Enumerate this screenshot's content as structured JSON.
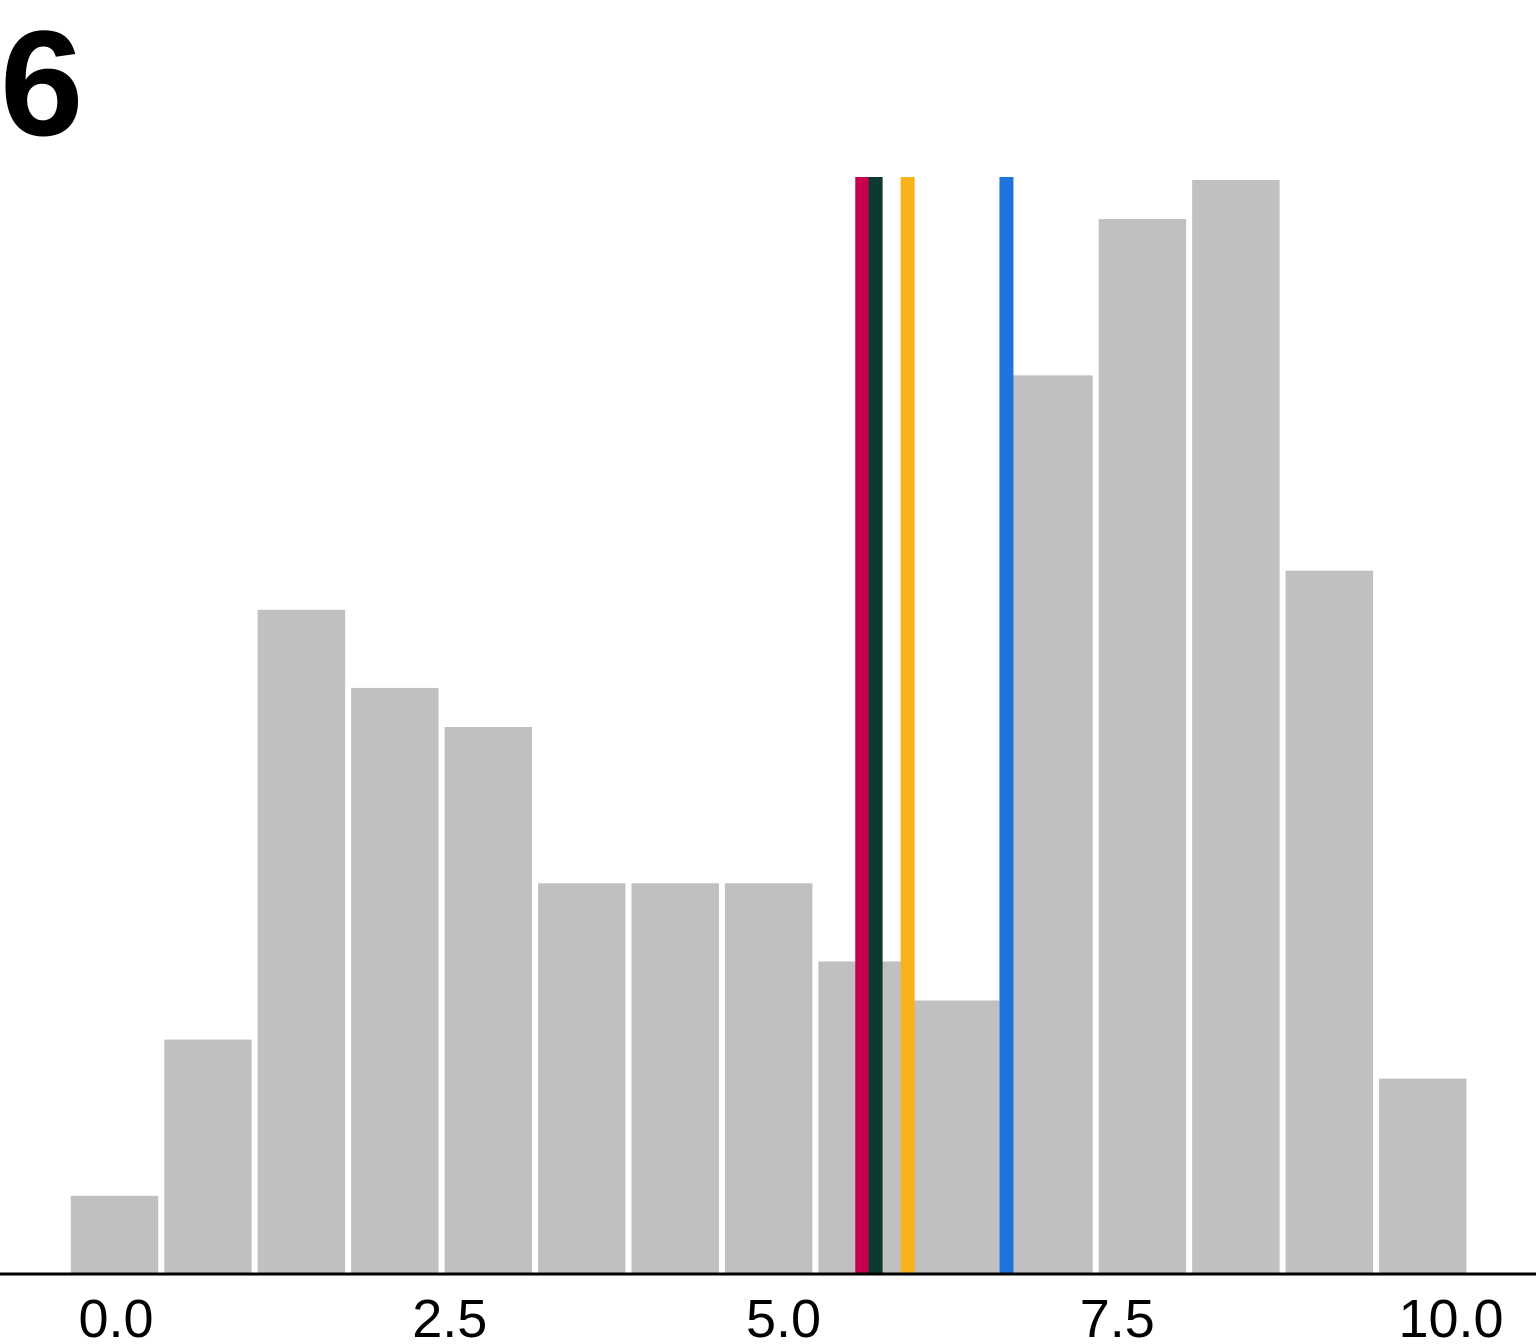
{
  "panel_label": "6",
  "chart_data": {
    "type": "histogram",
    "title": "",
    "xlabel": "",
    "ylabel": "",
    "xlim": [
      -0.35,
      10.5
    ],
    "ylim": [
      0,
      28
    ],
    "bin_width": 0.7,
    "bins": [
      {
        "start": -0.35,
        "count": 2
      },
      {
        "start": 0.35,
        "count": 6
      },
      {
        "start": 1.05,
        "count": 17
      },
      {
        "start": 1.75,
        "count": 15
      },
      {
        "start": 2.45,
        "count": 14
      },
      {
        "start": 3.15,
        "count": 10
      },
      {
        "start": 3.85,
        "count": 10
      },
      {
        "start": 4.55,
        "count": 10
      },
      {
        "start": 5.25,
        "count": 8
      },
      {
        "start": 5.95,
        "count": 7
      },
      {
        "start": 6.65,
        "count": 23
      },
      {
        "start": 7.35,
        "count": 27
      },
      {
        "start": 8.05,
        "count": 28
      },
      {
        "start": 8.75,
        "count": 18
      },
      {
        "start": 9.45,
        "count": 5
      }
    ],
    "bar_color": "#c0c0c0",
    "vlines": [
      {
        "x": 5.59,
        "color": "#c8004f"
      },
      {
        "x": 5.69,
        "color": "#0c3a32"
      },
      {
        "x": 5.93,
        "color": "#f8b31a"
      },
      {
        "x": 6.67,
        "color": "#1f74dc"
      }
    ],
    "xticks": [
      0.0,
      2.5,
      5.0,
      7.5,
      10.0
    ],
    "xtick_labels": [
      "0.0",
      "2.5",
      "5.0",
      "7.5",
      "10.0"
    ],
    "grid": false,
    "legend": "none"
  }
}
